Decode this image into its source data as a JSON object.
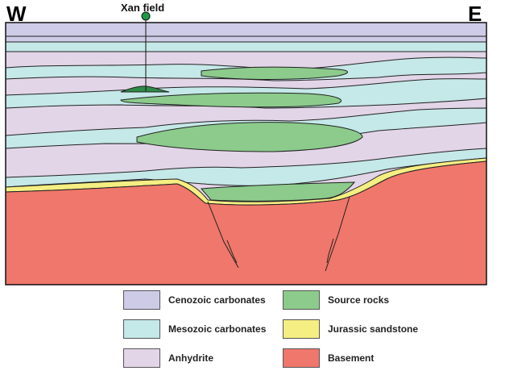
{
  "direction_left": "W",
  "direction_right": "E",
  "well": {
    "name": "Xan field",
    "color": "#1e9a46"
  },
  "colors": {
    "cenozoic": "#cdcbe6",
    "mesozoic": "#c5e8e8",
    "anhydrite": "#e3d5e8",
    "source": "#8ccb8c",
    "jurassic": "#f5ee82",
    "basement": "#f0776b",
    "trap": "#2f8a48"
  },
  "legend": [
    {
      "label": "Cenozoic carbonates",
      "color": "#cdcbe6"
    },
    {
      "label": "Source rocks",
      "color": "#8ccb8c"
    },
    {
      "label": "Mesozoic carbonates",
      "color": "#c5e8e8"
    },
    {
      "label": "Jurassic sandstone",
      "color": "#f5ee82"
    },
    {
      "label": "Anhydrite",
      "color": "#e3d5e8"
    },
    {
      "label": "Basement",
      "color": "#f0776b"
    }
  ]
}
